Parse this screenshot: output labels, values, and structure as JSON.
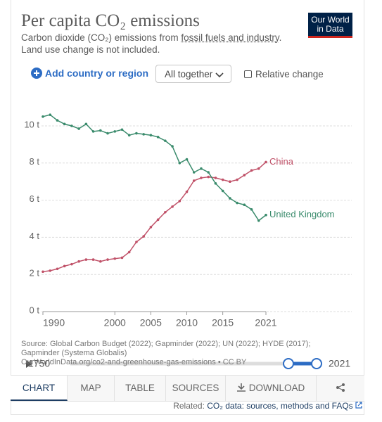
{
  "header": {
    "title": "Per capita CO₂ emissions",
    "subtitle": [
      "Carbon dioxide (CO₂) emissions from ",
      "fossil fuels and industry",
      ". Land use change is not included."
    ],
    "logo": [
      "Our World",
      "in Data"
    ]
  },
  "controls": {
    "add": "Add country or region",
    "mode": "All together",
    "relative": "Relative change"
  },
  "chart_data": {
    "type": "line",
    "x": [
      1990,
      1991,
      1992,
      1993,
      1994,
      1995,
      1996,
      1997,
      1998,
      1999,
      2000,
      2001,
      2002,
      2003,
      2004,
      2005,
      2006,
      2007,
      2008,
      2009,
      2010,
      2011,
      2012,
      2013,
      2014,
      2015,
      2016,
      2017,
      2018,
      2019,
      2020,
      2021
    ],
    "series": [
      {
        "name": "China",
        "color": "#c05168",
        "values": [
          2.15,
          2.2,
          2.3,
          2.45,
          2.55,
          2.7,
          2.8,
          2.8,
          2.7,
          2.8,
          2.85,
          2.9,
          3.2,
          3.75,
          4.05,
          4.55,
          4.95,
          5.35,
          5.65,
          5.95,
          6.45,
          7.05,
          7.2,
          7.25,
          7.2,
          7.1,
          7.0,
          7.1,
          7.35,
          7.6,
          7.7,
          8.05
        ]
      },
      {
        "name": "United Kingdom",
        "color": "#3a8b6c",
        "values": [
          10.5,
          10.6,
          10.3,
          10.1,
          10.0,
          9.85,
          10.1,
          9.7,
          9.75,
          9.6,
          9.7,
          9.8,
          9.5,
          9.6,
          9.55,
          9.5,
          9.4,
          9.2,
          8.9,
          8.0,
          8.2,
          7.5,
          7.7,
          7.5,
          6.9,
          6.5,
          6.1,
          5.85,
          5.75,
          5.5,
          4.9,
          5.2
        ]
      }
    ],
    "xlim": [
      1990,
      2021
    ],
    "xticks": [
      1990,
      2000,
      2005,
      2010,
      2015,
      2021
    ],
    "ylim": [
      0,
      11
    ],
    "yticks": [
      {
        "value": 0,
        "label": "0 t"
      },
      {
        "value": 2,
        "label": "2 t"
      },
      {
        "value": 4,
        "label": "4 t"
      },
      {
        "value": 6,
        "label": "6 t"
      },
      {
        "value": 8,
        "label": "8 t"
      },
      {
        "value": 10,
        "label": "10 t"
      }
    ],
    "grid": true
  },
  "source": [
    "Source: Global Carbon Budget (2022); Gapminder (2022); UN (2022); HYDE (2017); Gapminder (Systema Globalis)",
    "OurWorldInData.org/co2-and-greenhouse-gas-emissions • CC BY"
  ],
  "timeline": {
    "start": "1750",
    "end": "2021"
  },
  "tabs": [
    "CHART",
    "MAP",
    "TABLE",
    "SOURCES",
    "DOWNLOAD"
  ],
  "related": {
    "prefix": "Related: ",
    "link": "CO₂ data: sources, methods and FAQs"
  }
}
